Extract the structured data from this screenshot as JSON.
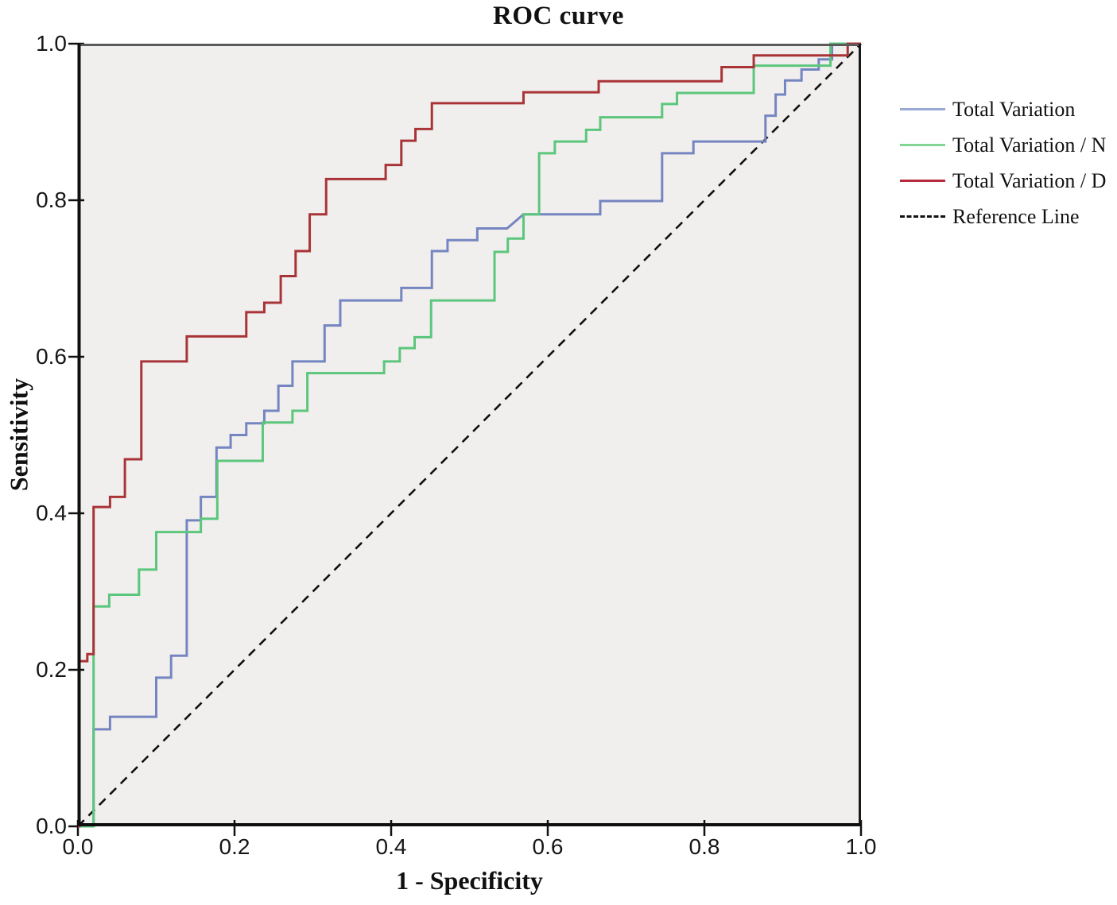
{
  "title": "ROC curve",
  "x_axis": {
    "label": "1 - Specificity",
    "tick_labels": [
      "0.0",
      "0.2",
      "0.4",
      "0.6",
      "0.8",
      "1.0"
    ],
    "tick_values": [
      0,
      0.2,
      0.4,
      0.6,
      0.8,
      1.0
    ]
  },
  "y_axis": {
    "label": "Sensitivity",
    "tick_labels": [
      "0.0",
      "0.2",
      "0.4",
      "0.6",
      "0.8",
      "1.0"
    ],
    "tick_values": [
      0,
      0.2,
      0.4,
      0.6,
      0.8,
      1.0
    ]
  },
  "colors": {
    "blue": "#7585c1",
    "green": "#5cc67c",
    "red": "#a93438",
    "reference": "#111111",
    "plot_bg": "#f0efed",
    "frame": "#1a1a1a"
  },
  "legend": [
    {
      "label": "Total Variation",
      "color": "#97a9d4",
      "dashed": false
    },
    {
      "label": "Total Variation / N",
      "color": "#82d694",
      "dashed": false
    },
    {
      "label": "Total Variation / D",
      "color": "#b5293b",
      "dashed": false
    },
    {
      "label": "Reference Line",
      "color": "#111111",
      "dashed": true
    }
  ],
  "chart_data": {
    "type": "line",
    "style": "step-roc",
    "title": "ROC curve",
    "xlabel": "1 - Specificity",
    "ylabel": "Sensitivity",
    "xlim": [
      0,
      1
    ],
    "ylim": [
      0,
      1
    ],
    "grid": false,
    "legend_position": "right-outside",
    "series": [
      {
        "name": "Total Variation",
        "color": "#7585c1",
        "points": [
          [
            0,
            0
          ],
          [
            0.02,
            0
          ],
          [
            0.02,
            0.124
          ],
          [
            0.041,
            0.124
          ],
          [
            0.041,
            0.14
          ],
          [
            0.1,
            0.14
          ],
          [
            0.1,
            0.19
          ],
          [
            0.119,
            0.19
          ],
          [
            0.119,
            0.218
          ],
          [
            0.139,
            0.218
          ],
          [
            0.139,
            0.391
          ],
          [
            0.157,
            0.391
          ],
          [
            0.157,
            0.421
          ],
          [
            0.177,
            0.421
          ],
          [
            0.177,
            0.484
          ],
          [
            0.195,
            0.484
          ],
          [
            0.195,
            0.5
          ],
          [
            0.215,
            0.5
          ],
          [
            0.215,
            0.515
          ],
          [
            0.238,
            0.515
          ],
          [
            0.238,
            0.531
          ],
          [
            0.256,
            0.531
          ],
          [
            0.256,
            0.563
          ],
          [
            0.274,
            0.563
          ],
          [
            0.274,
            0.594
          ],
          [
            0.315,
            0.594
          ],
          [
            0.315,
            0.64
          ],
          [
            0.335,
            0.64
          ],
          [
            0.335,
            0.672
          ],
          [
            0.413,
            0.672
          ],
          [
            0.413,
            0.688
          ],
          [
            0.452,
            0.688
          ],
          [
            0.452,
            0.735
          ],
          [
            0.472,
            0.735
          ],
          [
            0.472,
            0.749
          ],
          [
            0.51,
            0.749
          ],
          [
            0.51,
            0.764
          ],
          [
            0.548,
            0.764
          ],
          [
            0.569,
            0.782
          ],
          [
            0.667,
            0.782
          ],
          [
            0.667,
            0.799
          ],
          [
            0.746,
            0.799
          ],
          [
            0.746,
            0.86
          ],
          [
            0.786,
            0.86
          ],
          [
            0.786,
            0.875
          ],
          [
            0.878,
            0.875
          ],
          [
            0.878,
            0.908
          ],
          [
            0.891,
            0.908
          ],
          [
            0.891,
            0.935
          ],
          [
            0.903,
            0.935
          ],
          [
            0.903,
            0.953
          ],
          [
            0.924,
            0.953
          ],
          [
            0.924,
            0.967
          ],
          [
            0.946,
            0.967
          ],
          [
            0.946,
            0.98
          ],
          [
            0.963,
            0.98
          ],
          [
            0.963,
            1
          ],
          [
            1,
            1
          ]
        ]
      },
      {
        "name": "Total Variation / N",
        "color": "#5cc67c",
        "points": [
          [
            0,
            0
          ],
          [
            0.02,
            0
          ],
          [
            0.02,
            0.281
          ],
          [
            0.04,
            0.281
          ],
          [
            0.04,
            0.296
          ],
          [
            0.078,
            0.296
          ],
          [
            0.078,
            0.328
          ],
          [
            0.1,
            0.328
          ],
          [
            0.1,
            0.376
          ],
          [
            0.157,
            0.376
          ],
          [
            0.157,
            0.393
          ],
          [
            0.178,
            0.393
          ],
          [
            0.178,
            0.467
          ],
          [
            0.236,
            0.467
          ],
          [
            0.236,
            0.516
          ],
          [
            0.274,
            0.516
          ],
          [
            0.274,
            0.531
          ],
          [
            0.293,
            0.531
          ],
          [
            0.293,
            0.579
          ],
          [
            0.391,
            0.579
          ],
          [
            0.391,
            0.594
          ],
          [
            0.411,
            0.594
          ],
          [
            0.411,
            0.611
          ],
          [
            0.43,
            0.611
          ],
          [
            0.43,
            0.625
          ],
          [
            0.451,
            0.625
          ],
          [
            0.451,
            0.672
          ],
          [
            0.532,
            0.672
          ],
          [
            0.532,
            0.734
          ],
          [
            0.549,
            0.734
          ],
          [
            0.549,
            0.751
          ],
          [
            0.569,
            0.751
          ],
          [
            0.569,
            0.782
          ],
          [
            0.589,
            0.782
          ],
          [
            0.589,
            0.86
          ],
          [
            0.609,
            0.86
          ],
          [
            0.609,
            0.875
          ],
          [
            0.649,
            0.875
          ],
          [
            0.649,
            0.89
          ],
          [
            0.667,
            0.89
          ],
          [
            0.667,
            0.906
          ],
          [
            0.746,
            0.906
          ],
          [
            0.746,
            0.923
          ],
          [
            0.765,
            0.923
          ],
          [
            0.765,
            0.937
          ],
          [
            0.863,
            0.937
          ],
          [
            0.863,
            0.972
          ],
          [
            0.961,
            0.972
          ],
          [
            0.961,
            1
          ],
          [
            1,
            1
          ]
        ]
      },
      {
        "name": "Total Variation / D",
        "color": "#a93438",
        "points": [
          [
            0,
            0
          ],
          [
            0.002,
            0
          ],
          [
            0.002,
            0.211
          ],
          [
            0.012,
            0.211
          ],
          [
            0.012,
            0.22
          ],
          [
            0.02,
            0.22
          ],
          [
            0.02,
            0.408
          ],
          [
            0.041,
            0.408
          ],
          [
            0.041,
            0.421
          ],
          [
            0.06,
            0.421
          ],
          [
            0.06,
            0.469
          ],
          [
            0.081,
            0.469
          ],
          [
            0.081,
            0.594
          ],
          [
            0.139,
            0.594
          ],
          [
            0.139,
            0.626
          ],
          [
            0.215,
            0.626
          ],
          [
            0.215,
            0.657
          ],
          [
            0.238,
            0.657
          ],
          [
            0.238,
            0.669
          ],
          [
            0.259,
            0.669
          ],
          [
            0.259,
            0.703
          ],
          [
            0.278,
            0.703
          ],
          [
            0.278,
            0.735
          ],
          [
            0.296,
            0.735
          ],
          [
            0.296,
            0.782
          ],
          [
            0.317,
            0.782
          ],
          [
            0.317,
            0.827
          ],
          [
            0.393,
            0.827
          ],
          [
            0.393,
            0.845
          ],
          [
            0.413,
            0.845
          ],
          [
            0.413,
            0.876
          ],
          [
            0.431,
            0.876
          ],
          [
            0.431,
            0.891
          ],
          [
            0.452,
            0.891
          ],
          [
            0.452,
            0.924
          ],
          [
            0.569,
            0.924
          ],
          [
            0.569,
            0.938
          ],
          [
            0.665,
            0.938
          ],
          [
            0.665,
            0.952
          ],
          [
            0.822,
            0.952
          ],
          [
            0.822,
            0.97
          ],
          [
            0.863,
            0.97
          ],
          [
            0.863,
            0.985
          ],
          [
            0.983,
            0.985
          ],
          [
            0.983,
            1
          ],
          [
            1,
            1
          ]
        ]
      }
    ],
    "reference_line": {
      "name": "Reference Line",
      "points": [
        [
          0,
          0
        ],
        [
          1,
          1
        ]
      ],
      "dashed": true,
      "color": "#111111"
    }
  }
}
